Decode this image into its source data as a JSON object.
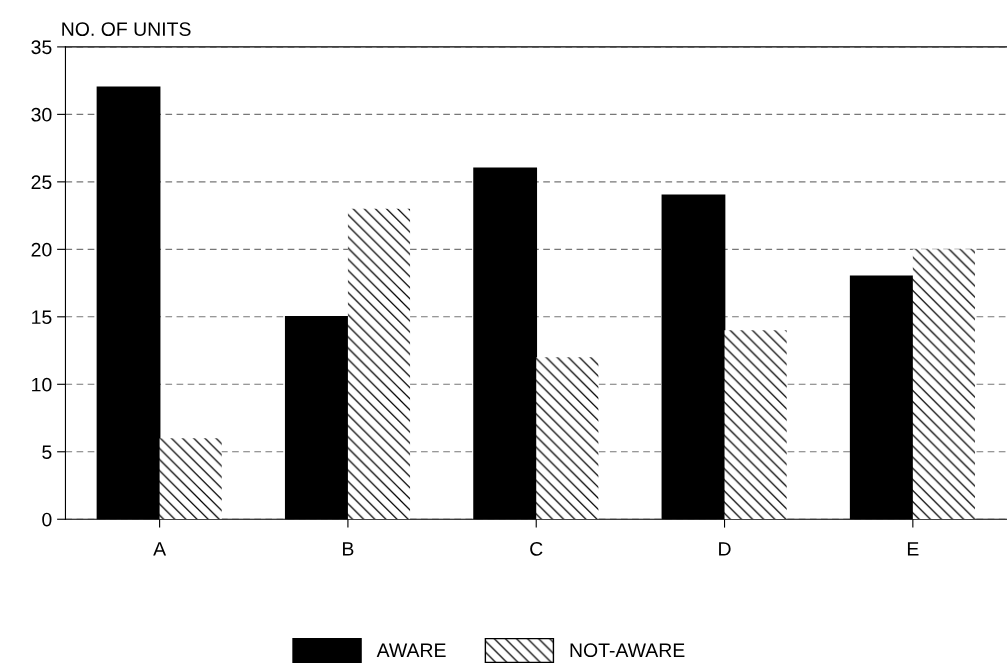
{
  "chart_data": {
    "type": "bar",
    "ylabel": "NO. OF UNITS",
    "categories": [
      "A",
      "B",
      "C",
      "D",
      "E"
    ],
    "series": [
      {
        "name": "AWARE",
        "color": "#000000",
        "values": [
          32,
          15,
          26,
          24,
          18
        ]
      },
      {
        "name": "NOT-AWARE",
        "color": "#ffffff",
        "values": [
          6,
          23,
          12,
          14,
          20
        ]
      }
    ],
    "ylim": [
      0,
      35
    ],
    "yticks": [
      0,
      5,
      10,
      15,
      20,
      25,
      30,
      35
    ],
    "grid": "y",
    "legend": "bottom"
  }
}
